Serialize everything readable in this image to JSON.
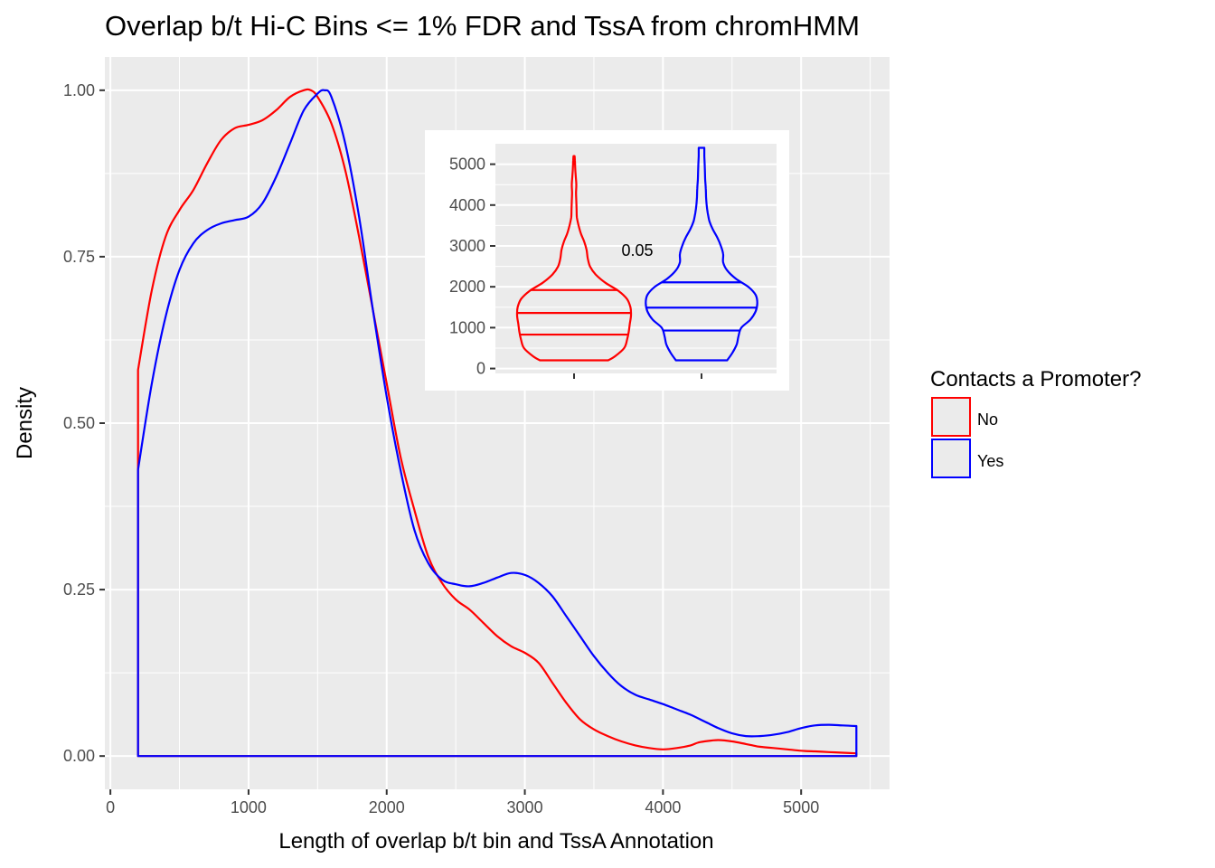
{
  "chart_data": [
    {
      "type": "area",
      "subtype": "density",
      "title": "Overlap b/t Hi-C Bins <= 1% FDR and TssA from chromHMM",
      "xlabel": "Length of overlap b/t bin and TssA Annotation",
      "ylabel": "Density",
      "xlim": [
        -40,
        5640
      ],
      "ylim": [
        -0.05,
        1.05
      ],
      "x_ticks": [
        0,
        1000,
        2000,
        3000,
        4000,
        5000
      ],
      "x_tick_labels": [
        "0",
        "1000",
        "2000",
        "3000",
        "4000",
        "5000"
      ],
      "y_ticks": [
        0,
        0.25,
        0.5,
        0.75,
        1.0
      ],
      "y_tick_labels": [
        "0.00",
        "0.25",
        "0.50",
        "0.75",
        "1.00"
      ],
      "grid": true,
      "legend": {
        "title": "Contacts a Promoter?",
        "placement": "right",
        "entries": [
          "No",
          "Yes"
        ]
      },
      "series": [
        {
          "name": "No",
          "color": "#ff0000",
          "x": [
            200,
            200,
            300,
            400,
            500,
            600,
            700,
            800,
            900,
            1000,
            1100,
            1200,
            1300,
            1400,
            1450,
            1500,
            1600,
            1700,
            1800,
            1900,
            2000,
            2100,
            2200,
            2300,
            2400,
            2500,
            2600,
            2700,
            2800,
            2900,
            3000,
            3100,
            3200,
            3300,
            3400,
            3500,
            3600,
            3700,
            3800,
            3900,
            4000,
            4100,
            4200,
            4250,
            4300,
            4400,
            4500,
            4600,
            4650,
            4700,
            4800,
            4900,
            5000,
            5100,
            5200,
            5300,
            5400,
            5400
          ],
          "y": [
            0,
            0.58,
            0.7,
            0.78,
            0.82,
            0.85,
            0.89,
            0.925,
            0.943,
            0.948,
            0.955,
            0.97,
            0.99,
            1.0,
            1.0,
            0.99,
            0.95,
            0.88,
            0.78,
            0.67,
            0.56,
            0.45,
            0.37,
            0.3,
            0.26,
            0.235,
            0.22,
            0.2,
            0.18,
            0.165,
            0.155,
            0.14,
            0.11,
            0.08,
            0.055,
            0.04,
            0.03,
            0.022,
            0.016,
            0.012,
            0.01,
            0.012,
            0.016,
            0.02,
            0.022,
            0.024,
            0.022,
            0.018,
            0.016,
            0.014,
            0.012,
            0.01,
            0.008,
            0.007,
            0.006,
            0.005,
            0.004,
            0
          ]
        },
        {
          "name": "Yes",
          "color": "#0000ff",
          "x": [
            200,
            200,
            300,
            400,
            500,
            600,
            700,
            800,
            900,
            1000,
            1100,
            1200,
            1300,
            1400,
            1500,
            1550,
            1600,
            1700,
            1800,
            1900,
            2000,
            2100,
            2200,
            2300,
            2400,
            2500,
            2600,
            2700,
            2800,
            2900,
            3000,
            3100,
            3200,
            3300,
            3400,
            3500,
            3600,
            3700,
            3800,
            3900,
            4000,
            4100,
            4200,
            4300,
            4400,
            4500,
            4600,
            4700,
            4800,
            4900,
            5000,
            5100,
            5200,
            5300,
            5400,
            5400
          ],
          "y": [
            0,
            0.43,
            0.56,
            0.66,
            0.73,
            0.77,
            0.79,
            0.8,
            0.805,
            0.81,
            0.83,
            0.87,
            0.92,
            0.97,
            0.995,
            1.0,
            0.99,
            0.92,
            0.81,
            0.67,
            0.54,
            0.43,
            0.34,
            0.29,
            0.265,
            0.258,
            0.255,
            0.26,
            0.268,
            0.275,
            0.272,
            0.26,
            0.24,
            0.21,
            0.18,
            0.15,
            0.125,
            0.105,
            0.092,
            0.085,
            0.078,
            0.07,
            0.062,
            0.052,
            0.042,
            0.034,
            0.03,
            0.03,
            0.032,
            0.036,
            0.042,
            0.046,
            0.047,
            0.046,
            0.045,
            0
          ]
        }
      ]
    },
    {
      "type": "violin",
      "placement": "inset-top-right",
      "ylim": [
        -120,
        5500
      ],
      "y_ticks": [
        0,
        1000,
        2000,
        3000,
        4000,
        5000
      ],
      "y_tick_labels": [
        "0",
        "1000",
        "2000",
        "3000",
        "4000",
        "5000"
      ],
      "grid": true,
      "annotation": "0.05",
      "series": [
        {
          "name": "No",
          "color": "#ff0000",
          "range": [
            200,
            5200
          ],
          "quartiles": [
            830,
            1360,
            1920
          ],
          "profile_y": [
            200,
            300,
            500,
            700,
            900,
            1100,
            1300,
            1500,
            1700,
            1900,
            2100,
            2300,
            2500,
            2700,
            2900,
            3100,
            3300,
            3500,
            3700,
            3900,
            4100,
            4300,
            4500,
            4700,
            4900,
            5100,
            5200
          ],
          "half_width": [
            0.6,
            0.72,
            0.88,
            0.93,
            0.96,
            0.98,
            1.0,
            0.99,
            0.93,
            0.78,
            0.55,
            0.38,
            0.28,
            0.24,
            0.22,
            0.18,
            0.12,
            0.08,
            0.05,
            0.045,
            0.04,
            0.035,
            0.04,
            0.03,
            0.02,
            0.015,
            0.01
          ]
        },
        {
          "name": "Yes",
          "color": "#0000ff",
          "range": [
            200,
            5400
          ],
          "quartiles": [
            930,
            1490,
            2110
          ],
          "profile_y": [
            200,
            400,
            600,
            800,
            1000,
            1200,
            1400,
            1600,
            1800,
            2000,
            2200,
            2400,
            2600,
            2800,
            3000,
            3200,
            3400,
            3600,
            3800,
            4000,
            4200,
            4400,
            4600,
            4800,
            5000,
            5200,
            5400
          ],
          "half_width": [
            0.45,
            0.55,
            0.62,
            0.65,
            0.7,
            0.86,
            0.95,
            0.98,
            0.95,
            0.82,
            0.6,
            0.45,
            0.38,
            0.38,
            0.34,
            0.28,
            0.2,
            0.14,
            0.11,
            0.09,
            0.08,
            0.075,
            0.065,
            0.06,
            0.055,
            0.05,
            0.05
          ]
        }
      ]
    }
  ]
}
